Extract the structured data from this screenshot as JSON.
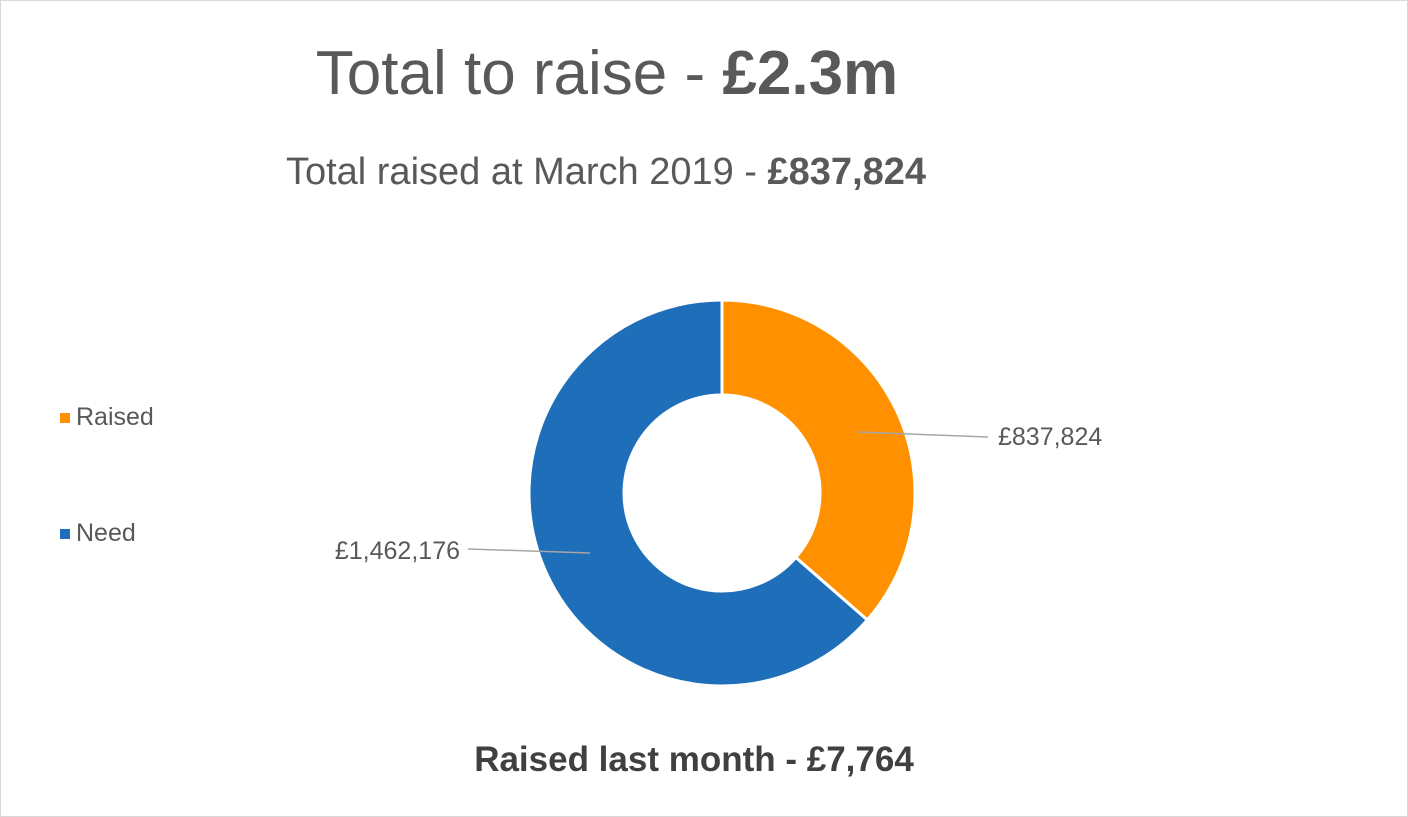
{
  "title": {
    "prefix": "Total to raise - ",
    "value": "£2.3m"
  },
  "subtitle": {
    "prefix": "Total raised at March 2019 - ",
    "value": "£837,824"
  },
  "footer": "Raised last month - £7,764",
  "colors": {
    "raised": "#FF9100",
    "need": "#1F6EBA",
    "leader": "#A6A6A6"
  },
  "legend": [
    {
      "label": "Raised",
      "color": "#FF9100"
    },
    {
      "label": "Need",
      "color": "#1F6EBA"
    }
  ],
  "chart_data": {
    "type": "pie",
    "variant": "doughnut",
    "categories": [
      "Raised",
      "Need"
    ],
    "values": [
      837824,
      1462176
    ],
    "data_labels": [
      "£837,824",
      "£1,462,176"
    ],
    "legend_position": "left"
  }
}
